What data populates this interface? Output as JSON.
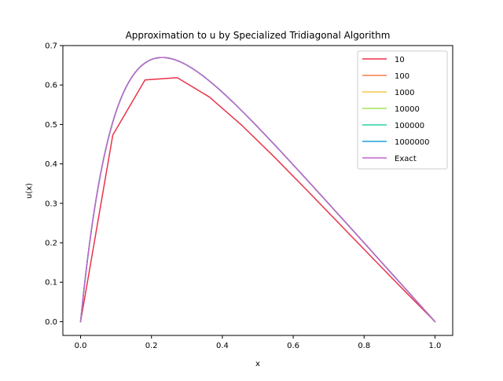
{
  "chart_data": {
    "type": "line",
    "title": "Approximation to u by Specialized Tridiagonal Algorithm",
    "xlabel": "x",
    "ylabel": "u(x)",
    "xlim": [
      -0.05,
      1.05
    ],
    "ylim": [
      -0.035,
      0.7
    ],
    "xticks": [
      0.0,
      0.2,
      0.4,
      0.6,
      0.8,
      1.0
    ],
    "xtick_labels": [
      "0.0",
      "0.2",
      "0.4",
      "0.6",
      "0.8",
      "1.0"
    ],
    "yticks": [
      0.0,
      0.1,
      0.2,
      0.3,
      0.4,
      0.5,
      0.6,
      0.7
    ],
    "ytick_labels": [
      "0.0",
      "0.1",
      "0.2",
      "0.3",
      "0.4",
      "0.5",
      "0.6",
      "0.7"
    ],
    "grid": false,
    "legend_position": "top-right",
    "series": [
      {
        "name": "10",
        "color": "#e8334a",
        "x": [
          0.0,
          0.0909,
          0.1818,
          0.2727,
          0.3636,
          0.4545,
          0.5455,
          0.6364,
          0.7273,
          0.8182,
          0.9091,
          1.0
        ],
        "y": [
          0.0,
          0.4731,
          0.6128,
          0.6186,
          0.5694,
          0.4981,
          0.4185,
          0.3353,
          0.2508,
          0.1665,
          0.0826,
          0.0
        ]
      },
      {
        "name": "100",
        "color": "#f47e4a",
        "function": "exact"
      },
      {
        "name": "1000",
        "color": "#f2c94c",
        "function": "exact"
      },
      {
        "name": "10000",
        "color": "#a3e05a",
        "function": "exact"
      },
      {
        "name": "100000",
        "color": "#2fcfa3",
        "function": "exact"
      },
      {
        "name": "1000000",
        "color": "#1f9fd9",
        "function": "exact"
      },
      {
        "name": "Exact",
        "color": "#c266cc",
        "function": "exact"
      }
    ]
  }
}
